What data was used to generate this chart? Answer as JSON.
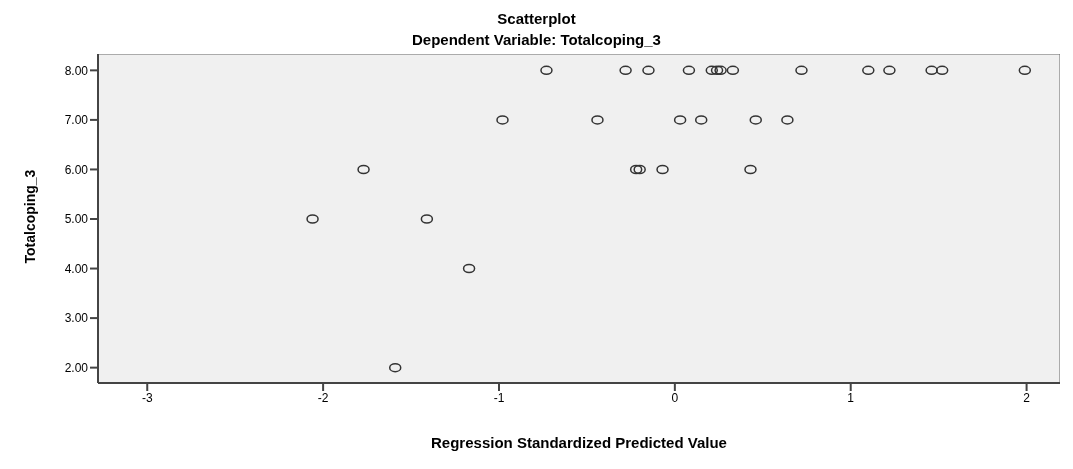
{
  "chart_data": {
    "type": "scatter",
    "title": "Scatterplot",
    "subtitle": "Dependent Variable: Totalcoping_3",
    "xlabel": "Regression Standardized Predicted Value",
    "ylabel": "Totalcoping_3",
    "x": [
      -0.73,
      -0.28,
      -0.15,
      0.08,
      0.21,
      0.24,
      0.26,
      0.33,
      0.72,
      1.1,
      1.22,
      1.46,
      1.52,
      1.99,
      -0.98,
      -0.44,
      0.03,
      0.15,
      0.46,
      0.64,
      -1.77,
      -0.22,
      -0.2,
      -0.07,
      0.43,
      -2.06,
      -1.41,
      -1.17,
      -1.59
    ],
    "values": [
      8,
      8,
      8,
      8,
      8,
      8,
      8,
      8,
      8,
      8,
      8,
      8,
      8,
      8,
      7,
      7,
      7,
      7,
      7,
      7,
      6,
      6,
      6,
      6,
      6,
      5,
      5,
      4,
      2
    ],
    "color": "#333333",
    "marker": "circle",
    "grid": false,
    "legend": false,
    "xlim": [
      -3.28,
      2.19
    ],
    "xticks": [
      -3,
      -2,
      -1,
      0,
      1,
      2
    ],
    "ylim": [
      1.69,
      8.33
    ],
    "yticks": [
      {
        "value": 2,
        "label": "2.00"
      },
      {
        "value": 3,
        "label": "3.00"
      },
      {
        "value": 4,
        "label": "4.00"
      },
      {
        "value": 5,
        "label": "5.00"
      },
      {
        "value": 6,
        "label": "6.00"
      },
      {
        "value": 7,
        "label": "7.00"
      },
      {
        "value": 8,
        "label": "8.00"
      }
    ]
  }
}
